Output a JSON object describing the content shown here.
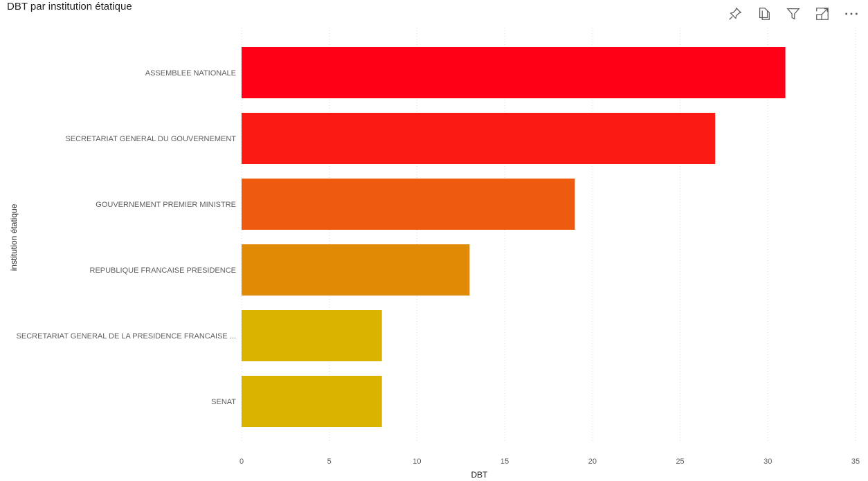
{
  "header": {
    "title": "DBT par institution étatique"
  },
  "toolbar": {
    "icons": [
      "pin-icon",
      "copy-icon",
      "filter-icon",
      "focus-mode-icon",
      "more-options-icon"
    ]
  },
  "chart_data": {
    "type": "bar",
    "orientation": "horizontal",
    "title": "DBT par institution étatique",
    "xlabel": "DBT",
    "ylabel": "institution étatique",
    "xlim": [
      0,
      35
    ],
    "xticks": [
      0,
      5,
      10,
      15,
      20,
      25,
      30,
      35
    ],
    "categories": [
      "ASSEMBLEE NATIONALE",
      "SECRETARIAT GENERAL DU GOUVERNEMENT",
      "GOUVERNEMENT PREMIER MINISTRE",
      "REPUBLIQUE FRANCAISE PRESIDENCE",
      "SECRETARIAT GENERAL DE LA PRESIDENCE FRANCAISE ...",
      "SENAT"
    ],
    "values": [
      31,
      27,
      19,
      13,
      8,
      8
    ],
    "colors": [
      "#ff0016",
      "#fc1b14",
      "#ee5a0e",
      "#e08a05",
      "#dab300",
      "#dab300"
    ],
    "grid": "vertical-dotted",
    "legend": "none"
  }
}
